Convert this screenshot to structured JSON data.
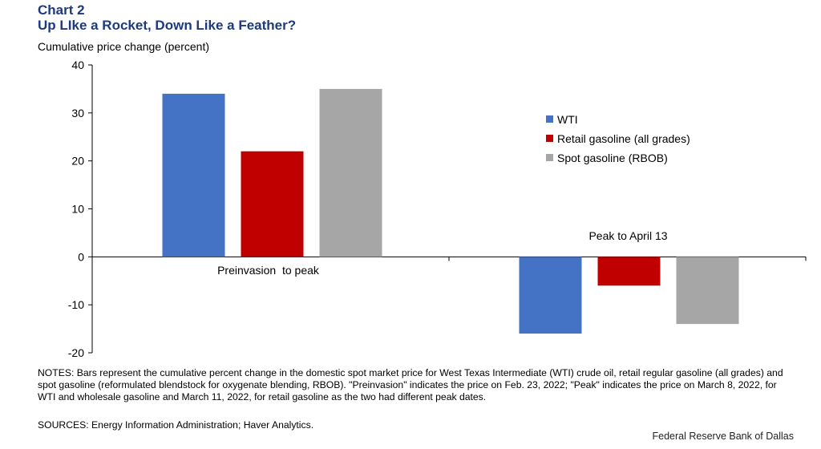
{
  "header": {
    "chart_label": "Chart 2",
    "title": "Up LIke a Rocket, Down Like a Feather?",
    "y_unit": "Cumulative  price change  (percent)"
  },
  "colors": {
    "wti": "#4472c4",
    "retail": "#c00000",
    "spot": "#a6a6a6",
    "title": "#1f3a7a"
  },
  "chart_data": {
    "type": "bar",
    "title": "Up LIke a Rocket, Down Like a Feather?",
    "ylabel": "Cumulative  price change  (percent)",
    "ylim": [
      -20,
      40
    ],
    "yticks": [
      -20,
      -10,
      0,
      10,
      20,
      30,
      40
    ],
    "grid": false,
    "legend_position": "right",
    "categories": [
      "Preinvasion  to peak",
      "Peak to April 13"
    ],
    "series": [
      {
        "name": "WTI",
        "values": [
          34,
          -16
        ],
        "color": "#4472c4"
      },
      {
        "name": "Retail gasoline (all grades)",
        "values": [
          22,
          -6
        ],
        "color": "#c00000"
      },
      {
        "name": "Spot gasoline (RBOB)",
        "values": [
          35,
          -14
        ],
        "color": "#a6a6a6"
      }
    ]
  },
  "notes": {
    "text": "NOTES: Bars represent the cumulative percent change in the domestic spot market price for West Texas Intermediate  (WTI) crude oil, retail regular gasoline (all grades) and spot gasoline (reformulated blendstock for oxygenate blending, RBOB). \"Preinvasion\" indicates the price on Feb. 23, 2022; \"Peak\" indicates the price on March 8, 2022, for WTI and wholesale gasoline and March 11, 2022, for retail gasoline as the two had different peak dates.",
    "sources": "SOURCES: Energy Information  Administration;  Haver Analytics."
  },
  "footer": {
    "credit": "Federal Reserve  Bank of Dallas"
  }
}
